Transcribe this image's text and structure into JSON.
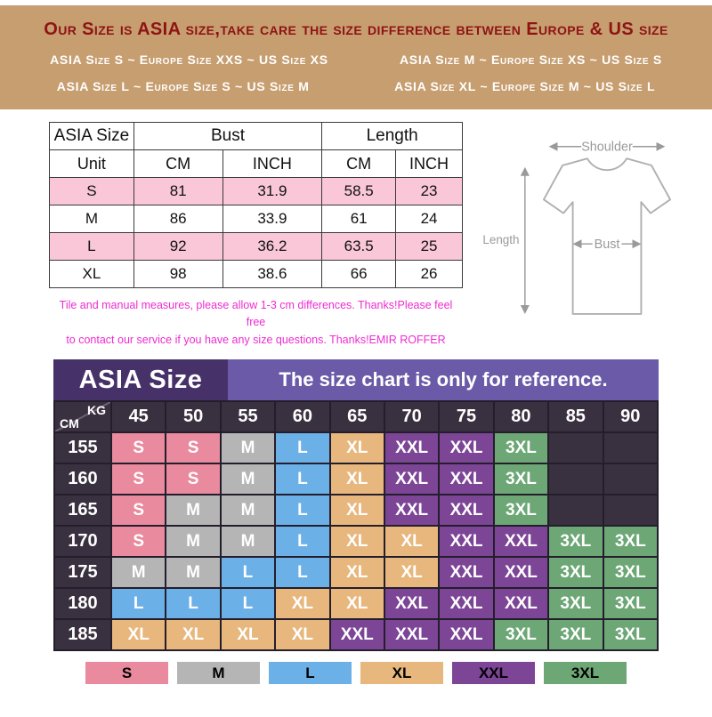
{
  "banner": {
    "title": "Our Size is ASIA size,take care the size difference between Europe & US size",
    "rows": [
      {
        "left": "ASIA Size S ~ Europe Size XXS ~ US Size XS",
        "right": "ASIA Size M ~ Europe Size XS ~ US Size S"
      },
      {
        "left": "ASIA Size L ~ Europe Size S ~ US Size M",
        "right": "ASIA Size XL ~ Europe Size M ~ US Size L"
      }
    ],
    "colors": {
      "background": "#c79e70",
      "title_text": "#8e1414",
      "row_text": "#ffffff"
    }
  },
  "shirt_diagram": {
    "labels": {
      "shoulder": "Shoulder",
      "bust": "Bust",
      "length": "Length"
    }
  },
  "chart_data": [
    {
      "type": "table",
      "title": "ASIA Size measurement table",
      "header_groups": {
        "size": "ASIA Size",
        "bust": "Bust",
        "length": "Length"
      },
      "unit_row": [
        "Unit",
        "CM",
        "INCH",
        "CM",
        "INCH"
      ],
      "rows": [
        [
          "S",
          "81",
          "31.9",
          "58.5",
          "23"
        ],
        [
          "M",
          "86",
          "33.9",
          "61",
          "24"
        ],
        [
          "L",
          "92",
          "36.2",
          "63.5",
          "25"
        ],
        [
          "XL",
          "98",
          "38.6",
          "66",
          "26"
        ]
      ],
      "note": "Tile and manual measures, please allow 1-3 cm differences. Thanks!Please feel free\nto contact our service if you have any size questions. Thanks!EMIR ROFFER",
      "row_highlight_color": "#f9c7d7"
    },
    {
      "type": "table",
      "title": "ASIA Size",
      "subtitle": "The size chart is only for reference.",
      "x_axis": "KG",
      "y_axis": "CM",
      "weights_kg": [
        "45",
        "50",
        "55",
        "60",
        "65",
        "70",
        "75",
        "80",
        "85",
        "90"
      ],
      "rows": [
        {
          "cm": "155",
          "cells": [
            "S",
            "S",
            "M",
            "L",
            "XL",
            "XXL",
            "XXL",
            "3XL",
            "",
            ""
          ]
        },
        {
          "cm": "160",
          "cells": [
            "S",
            "S",
            "M",
            "L",
            "XL",
            "XXL",
            "XXL",
            "3XL",
            "",
            ""
          ]
        },
        {
          "cm": "165",
          "cells": [
            "S",
            "M",
            "M",
            "L",
            "XL",
            "XXL",
            "XXL",
            "3XL",
            "",
            ""
          ]
        },
        {
          "cm": "170",
          "cells": [
            "S",
            "M",
            "M",
            "L",
            "XL",
            "XL",
            "XXL",
            "XXL",
            "3XL",
            "3XL"
          ]
        },
        {
          "cm": "175",
          "cells": [
            "M",
            "M",
            "L",
            "L",
            "XL",
            "XL",
            "XXL",
            "XXL",
            "3XL",
            "3XL"
          ]
        },
        {
          "cm": "180",
          "cells": [
            "L",
            "L",
            "L",
            "XL",
            "XL",
            "XXL",
            "XXL",
            "XXL",
            "3XL",
            "3XL"
          ]
        },
        {
          "cm": "185",
          "cells": [
            "XL",
            "XL",
            "XL",
            "XL",
            "XXL",
            "XXL",
            "XXL",
            "3XL",
            "3XL",
            "3XL"
          ]
        }
      ],
      "legend": [
        "S",
        "M",
        "L",
        "XL",
        "XXL",
        "3XL"
      ],
      "colors": {
        "S": "#e98a9e",
        "M": "#b5b5b5",
        "L": "#6cb0e8",
        "XL": "#e7b77d",
        "XXL": "#7c4596",
        "3XL": "#6ca775"
      }
    }
  ]
}
